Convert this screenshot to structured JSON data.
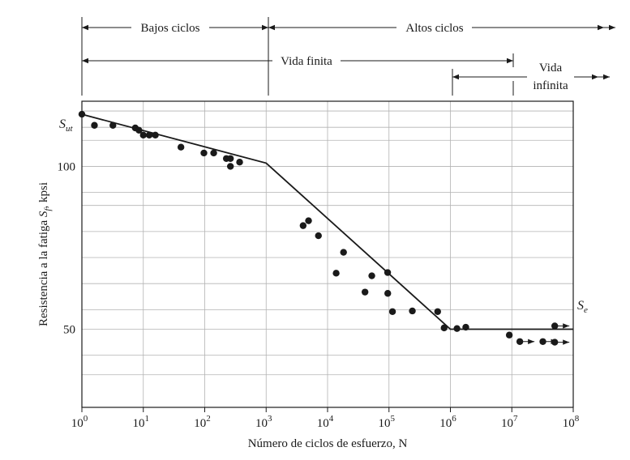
{
  "chart_data": {
    "type": "scatter",
    "title": "",
    "xlabel": "Número de ciclos de esfuerzo, N",
    "ylabel_parts": {
      "pre": "Resistencia a la fatiga ",
      "symbol": "S",
      "subscript": "f",
      "post": ", kpsi"
    },
    "x_scale": "log10",
    "xlim": [
      1,
      100000000
    ],
    "ylim": [
      26,
      120
    ],
    "x_ticks": [
      {
        "value": 1,
        "base": "10",
        "exp": "0"
      },
      {
        "value": 10,
        "base": "10",
        "exp": "1"
      },
      {
        "value": 100,
        "base": "10",
        "exp": "2"
      },
      {
        "value": 1000,
        "base": "10",
        "exp": "3"
      },
      {
        "value": 10000,
        "base": "10",
        "exp": "4"
      },
      {
        "value": 100000,
        "base": "10",
        "exp": "5"
      },
      {
        "value": 1000000,
        "base": "10",
        "exp": "6"
      },
      {
        "value": 10000000,
        "base": "10",
        "exp": "7"
      },
      {
        "value": 100000000,
        "base": "10",
        "exp": "8"
      }
    ],
    "y_ticks": [
      {
        "value": 100,
        "label": "100"
      },
      {
        "value": 50,
        "label": "50"
      }
    ],
    "grid": true,
    "y_gridlines": [
      26,
      36,
      42,
      50,
      56,
      64,
      72,
      80,
      88,
      92,
      100,
      108,
      112,
      117
    ],
    "sut_label": {
      "symbol": "S",
      "subscript": "ut",
      "y": 116
    },
    "se_label": {
      "symbol": "S",
      "subscript": "e",
      "y": 50
    },
    "trend_line": [
      {
        "x": 1,
        "y": 116
      },
      {
        "x": 1000,
        "y": 101
      },
      {
        "x": 1000000,
        "y": 50
      },
      {
        "x": 100000000,
        "y": 50
      }
    ],
    "points": [
      {
        "x": 1,
        "y": 116
      },
      {
        "x": 1.6,
        "y": 112.6
      },
      {
        "x": 3.2,
        "y": 112.6
      },
      {
        "x": 7.4,
        "y": 111.8
      },
      {
        "x": 8.5,
        "y": 111.1
      },
      {
        "x": 10,
        "y": 109.6
      },
      {
        "x": 12.5,
        "y": 109.6
      },
      {
        "x": 15.7,
        "y": 109.6
      },
      {
        "x": 41,
        "y": 105.9
      },
      {
        "x": 97,
        "y": 104.1
      },
      {
        "x": 140,
        "y": 104.1
      },
      {
        "x": 225,
        "y": 102.4
      },
      {
        "x": 262,
        "y": 102.4
      },
      {
        "x": 262,
        "y": 100
      },
      {
        "x": 370,
        "y": 101.3
      },
      {
        "x": 4000,
        "y": 81.8
      },
      {
        "x": 4900,
        "y": 83.3
      },
      {
        "x": 7100,
        "y": 78.7
      },
      {
        "x": 13800,
        "y": 67.2
      },
      {
        "x": 18200,
        "y": 73.6
      },
      {
        "x": 40700,
        "y": 61.4
      },
      {
        "x": 52500,
        "y": 66.4
      },
      {
        "x": 95000,
        "y": 67.4
      },
      {
        "x": 95500,
        "y": 61
      },
      {
        "x": 114000,
        "y": 55.4
      },
      {
        "x": 240000,
        "y": 55.6
      },
      {
        "x": 620000,
        "y": 55.4
      },
      {
        "x": 790000,
        "y": 50.4
      },
      {
        "x": 1280000,
        "y": 50.2
      },
      {
        "x": 1780000,
        "y": 50.6
      },
      {
        "x": 9100000,
        "y": 48.2
      }
    ],
    "runouts": [
      {
        "x": 13500000,
        "y": 46.2
      },
      {
        "x": 32000000,
        "y": 46.2
      },
      {
        "x": 50000000,
        "y": 51
      },
      {
        "x": 50000000,
        "y": 46
      }
    ],
    "regions": {
      "bajos_ciclos": "Bajos ciclos",
      "altos_ciclos": "Altos ciclos",
      "vida_finita": "Vida finita",
      "vida_infinita_1": "Vida",
      "vida_infinita_2": "infinita"
    }
  }
}
